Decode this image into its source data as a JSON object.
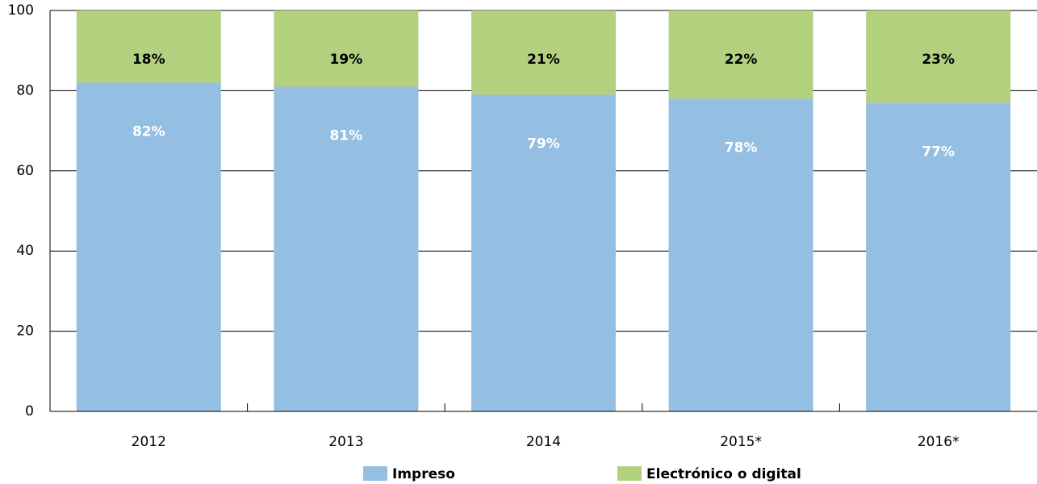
{
  "chart_data": {
    "type": "stacked_bar",
    "categories": [
      "2012",
      "2013",
      "2014",
      "2015*",
      "2016*"
    ],
    "series": [
      {
        "name": "Impreso",
        "color": "#95bfe2",
        "values": [
          82,
          81,
          79,
          78,
          77
        ],
        "value_labels": [
          "82%",
          "81%",
          "79%",
          "78%",
          "77%"
        ]
      },
      {
        "name": "Electrónico o digital",
        "color": "#b3d07f",
        "values": [
          18,
          19,
          21,
          22,
          23
        ],
        "value_labels": [
          "18%",
          "19%",
          "21%",
          "22%",
          "23%"
        ]
      }
    ],
    "ylim": [
      0,
      100
    ],
    "yticks": [
      0,
      20,
      40,
      60,
      80,
      100
    ],
    "grid": true,
    "legend": "bottom"
  }
}
